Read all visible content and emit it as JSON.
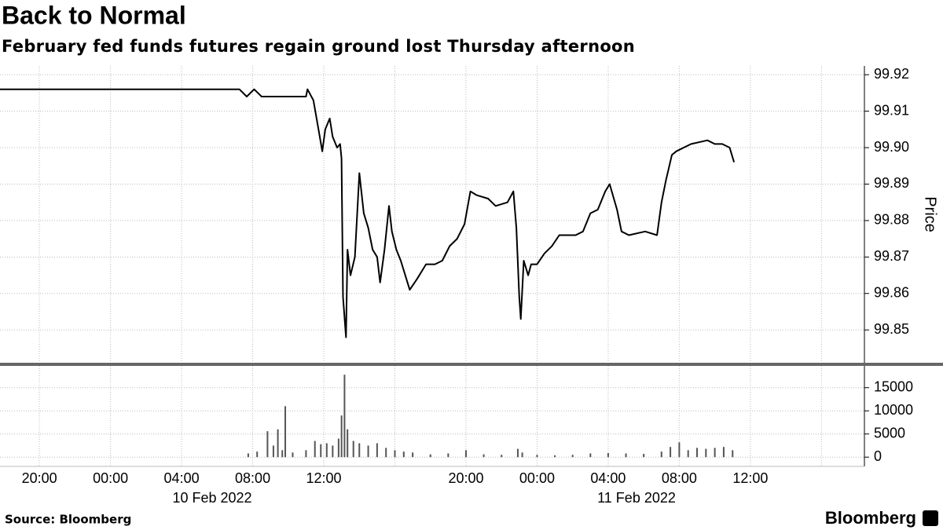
{
  "source": "Source: Bloomberg",
  "brand": "Bloomberg",
  "chart_data": [
    {
      "type": "line",
      "title": "Back to Normal",
      "subtitle": "February fed funds futures regain ground lost Thursday afternoon",
      "y_label": "Price",
      "color": "#000000",
      "grid": true,
      "xlim": [
        "2022-02-09T17:47",
        "2022-02-11T18:25"
      ],
      "ylim": [
        99.841,
        99.9224
      ],
      "yticks": [
        99.85,
        99.86,
        99.87,
        99.88,
        99.89,
        {
          "value": 99.9,
          "label": "99.90"
        },
        99.91,
        99.92
      ],
      "x": [
        "2022-02-09T17:47",
        "2022-02-10T07:15",
        "2022-02-10T07:40",
        "2022-02-10T08:05",
        "2022-02-10T08:30",
        "2022-02-10T11:00",
        "2022-02-10T11:05",
        "2022-02-10T11:25",
        "2022-02-10T11:40",
        "2022-02-10T11:55",
        "2022-02-10T12:05",
        "2022-02-10T12:20",
        "2022-02-10T12:30",
        "2022-02-10T12:45",
        "2022-02-10T12:55",
        "2022-02-10T13:00",
        "2022-02-10T13:05",
        "2022-02-10T13:15",
        "2022-02-10T13:20",
        "2022-02-10T13:30",
        "2022-02-10T13:45",
        "2022-02-10T14:00",
        "2022-02-10T14:15",
        "2022-02-10T14:30",
        "2022-02-10T14:45",
        "2022-02-10T15:00",
        "2022-02-10T15:10",
        "2022-02-10T15:25",
        "2022-02-10T15:40",
        "2022-02-10T15:50",
        "2022-02-10T16:05",
        "2022-02-10T16:20",
        "2022-02-10T16:35",
        "2022-02-10T16:50",
        "2022-02-10T17:15",
        "2022-02-10T17:45",
        "2022-02-10T18:15",
        "2022-02-10T18:40",
        "2022-02-10T19:05",
        "2022-02-10T19:30",
        "2022-02-10T19:55",
        "2022-02-10T20:15",
        "2022-02-10T20:35",
        "2022-02-10T21:15",
        "2022-02-10T21:40",
        "2022-02-10T22:20",
        "2022-02-10T22:40",
        "2022-02-10T22:50",
        "2022-02-10T23:00",
        "2022-02-10T23:05",
        "2022-02-10T23:15",
        "2022-02-10T23:30",
        "2022-02-10T23:40",
        "2022-02-11T00:00",
        "2022-02-11T00:25",
        "2022-02-11T00:50",
        "2022-02-11T01:15",
        "2022-02-11T02:10",
        "2022-02-11T02:35",
        "2022-02-11T03:00",
        "2022-02-11T03:25",
        "2022-02-11T03:50",
        "2022-02-11T04:05",
        "2022-02-11T04:30",
        "2022-02-11T04:45",
        "2022-02-11T05:10",
        "2022-02-11T06:05",
        "2022-02-11T06:45",
        "2022-02-11T07:00",
        "2022-02-11T07:15",
        "2022-02-11T07:35",
        "2022-02-11T07:50",
        "2022-02-11T08:15",
        "2022-02-11T08:40",
        "2022-02-11T09:35",
        "2022-02-11T10:00",
        "2022-02-11T10:25",
        "2022-02-11T10:50",
        "2022-02-11T11:05"
      ],
      "values": [
        99.916,
        99.916,
        99.914,
        99.916,
        99.914,
        99.914,
        99.916,
        99.913,
        99.906,
        99.899,
        99.905,
        99.908,
        99.903,
        99.9,
        99.901,
        99.897,
        99.859,
        99.848,
        99.872,
        99.865,
        99.87,
        99.893,
        99.882,
        99.878,
        99.872,
        99.87,
        99.863,
        99.872,
        99.884,
        99.877,
        99.872,
        99.869,
        99.865,
        99.861,
        99.864,
        99.868,
        99.868,
        99.869,
        99.873,
        99.875,
        99.879,
        99.888,
        99.887,
        99.886,
        99.884,
        99.885,
        99.888,
        99.878,
        99.859,
        99.853,
        99.869,
        99.865,
        99.868,
        99.868,
        99.871,
        99.873,
        99.876,
        99.876,
        99.877,
        99.882,
        99.883,
        99.888,
        99.89,
        99.883,
        99.877,
        99.876,
        99.877,
        99.876,
        99.885,
        99.891,
        99.898,
        99.899,
        99.9,
        99.901,
        99.902,
        99.901,
        99.901,
        99.9,
        99.896
      ]
    },
    {
      "type": "bar",
      "color": "#555555",
      "grid": true,
      "xlim": [
        "2022-02-09T17:47",
        "2022-02-11T18:25"
      ],
      "ylim": [
        -2000,
        19700
      ],
      "yticks": [
        0,
        5000,
        10000,
        15000
      ],
      "xticks": [
        {
          "value": "2022-02-09T20:00",
          "label": "20:00"
        },
        {
          "value": "2022-02-10T00:00",
          "label": "00:00"
        },
        {
          "value": "2022-02-10T04:00",
          "label": "04:00"
        },
        {
          "value": "2022-02-10T08:00",
          "label": "08:00"
        },
        {
          "value": "2022-02-10T12:00",
          "label": "12:00"
        },
        {
          "value": "2022-02-10T16:00",
          "label": null
        },
        {
          "value": "2022-02-10T20:00",
          "label": "20:00"
        },
        {
          "value": "2022-02-11T00:00",
          "label": "00:00"
        },
        {
          "value": "2022-02-11T04:00",
          "label": "04:00"
        },
        {
          "value": "2022-02-11T08:00",
          "label": "08:00"
        },
        {
          "value": "2022-02-11T12:00",
          "label": "12:00"
        },
        {
          "value": "2022-02-11T16:00",
          "label": null
        }
      ],
      "date_labels": [
        "10 Feb 2022",
        "11 Feb 2022"
      ],
      "x": [
        "2022-02-10T07:45",
        "2022-02-10T08:15",
        "2022-02-10T08:50",
        "2022-02-10T09:10",
        "2022-02-10T09:25",
        "2022-02-10T09:40",
        "2022-02-10T09:50",
        "2022-02-10T10:15",
        "2022-02-10T11:00",
        "2022-02-10T11:30",
        "2022-02-10T11:50",
        "2022-02-10T12:10",
        "2022-02-10T12:30",
        "2022-02-10T12:50",
        "2022-02-10T13:00",
        "2022-02-10T13:10",
        "2022-02-10T13:20",
        "2022-02-10T13:40",
        "2022-02-10T14:00",
        "2022-02-10T14:30",
        "2022-02-10T15:00",
        "2022-02-10T15:30",
        "2022-02-10T16:00",
        "2022-02-10T16:30",
        "2022-02-10T17:00",
        "2022-02-10T18:00",
        "2022-02-10T19:00",
        "2022-02-10T20:00",
        "2022-02-10T21:00",
        "2022-02-10T22:00",
        "2022-02-10T22:55",
        "2022-02-10T23:10",
        "2022-02-11T00:00",
        "2022-02-11T01:00",
        "2022-02-11T02:00",
        "2022-02-11T03:00",
        "2022-02-11T04:00",
        "2022-02-11T05:00",
        "2022-02-11T06:00",
        "2022-02-11T07:00",
        "2022-02-11T07:30",
        "2022-02-11T08:00",
        "2022-02-11T08:30",
        "2022-02-11T09:00",
        "2022-02-11T09:30",
        "2022-02-11T10:00",
        "2022-02-11T10:30",
        "2022-02-11T11:00"
      ],
      "values": [
        800,
        1200,
        5600,
        2500,
        6000,
        1500,
        11000,
        1000,
        1500,
        3500,
        2800,
        3000,
        2500,
        4000,
        9000,
        17800,
        6000,
        3500,
        3000,
        2500,
        3000,
        2000,
        1500,
        1200,
        1000,
        600,
        800,
        1500,
        600,
        500,
        1800,
        1000,
        500,
        400,
        500,
        800,
        900,
        800,
        700,
        1200,
        2200,
        3200,
        1500,
        2000,
        1800,
        2000,
        2200,
        1500
      ]
    }
  ]
}
